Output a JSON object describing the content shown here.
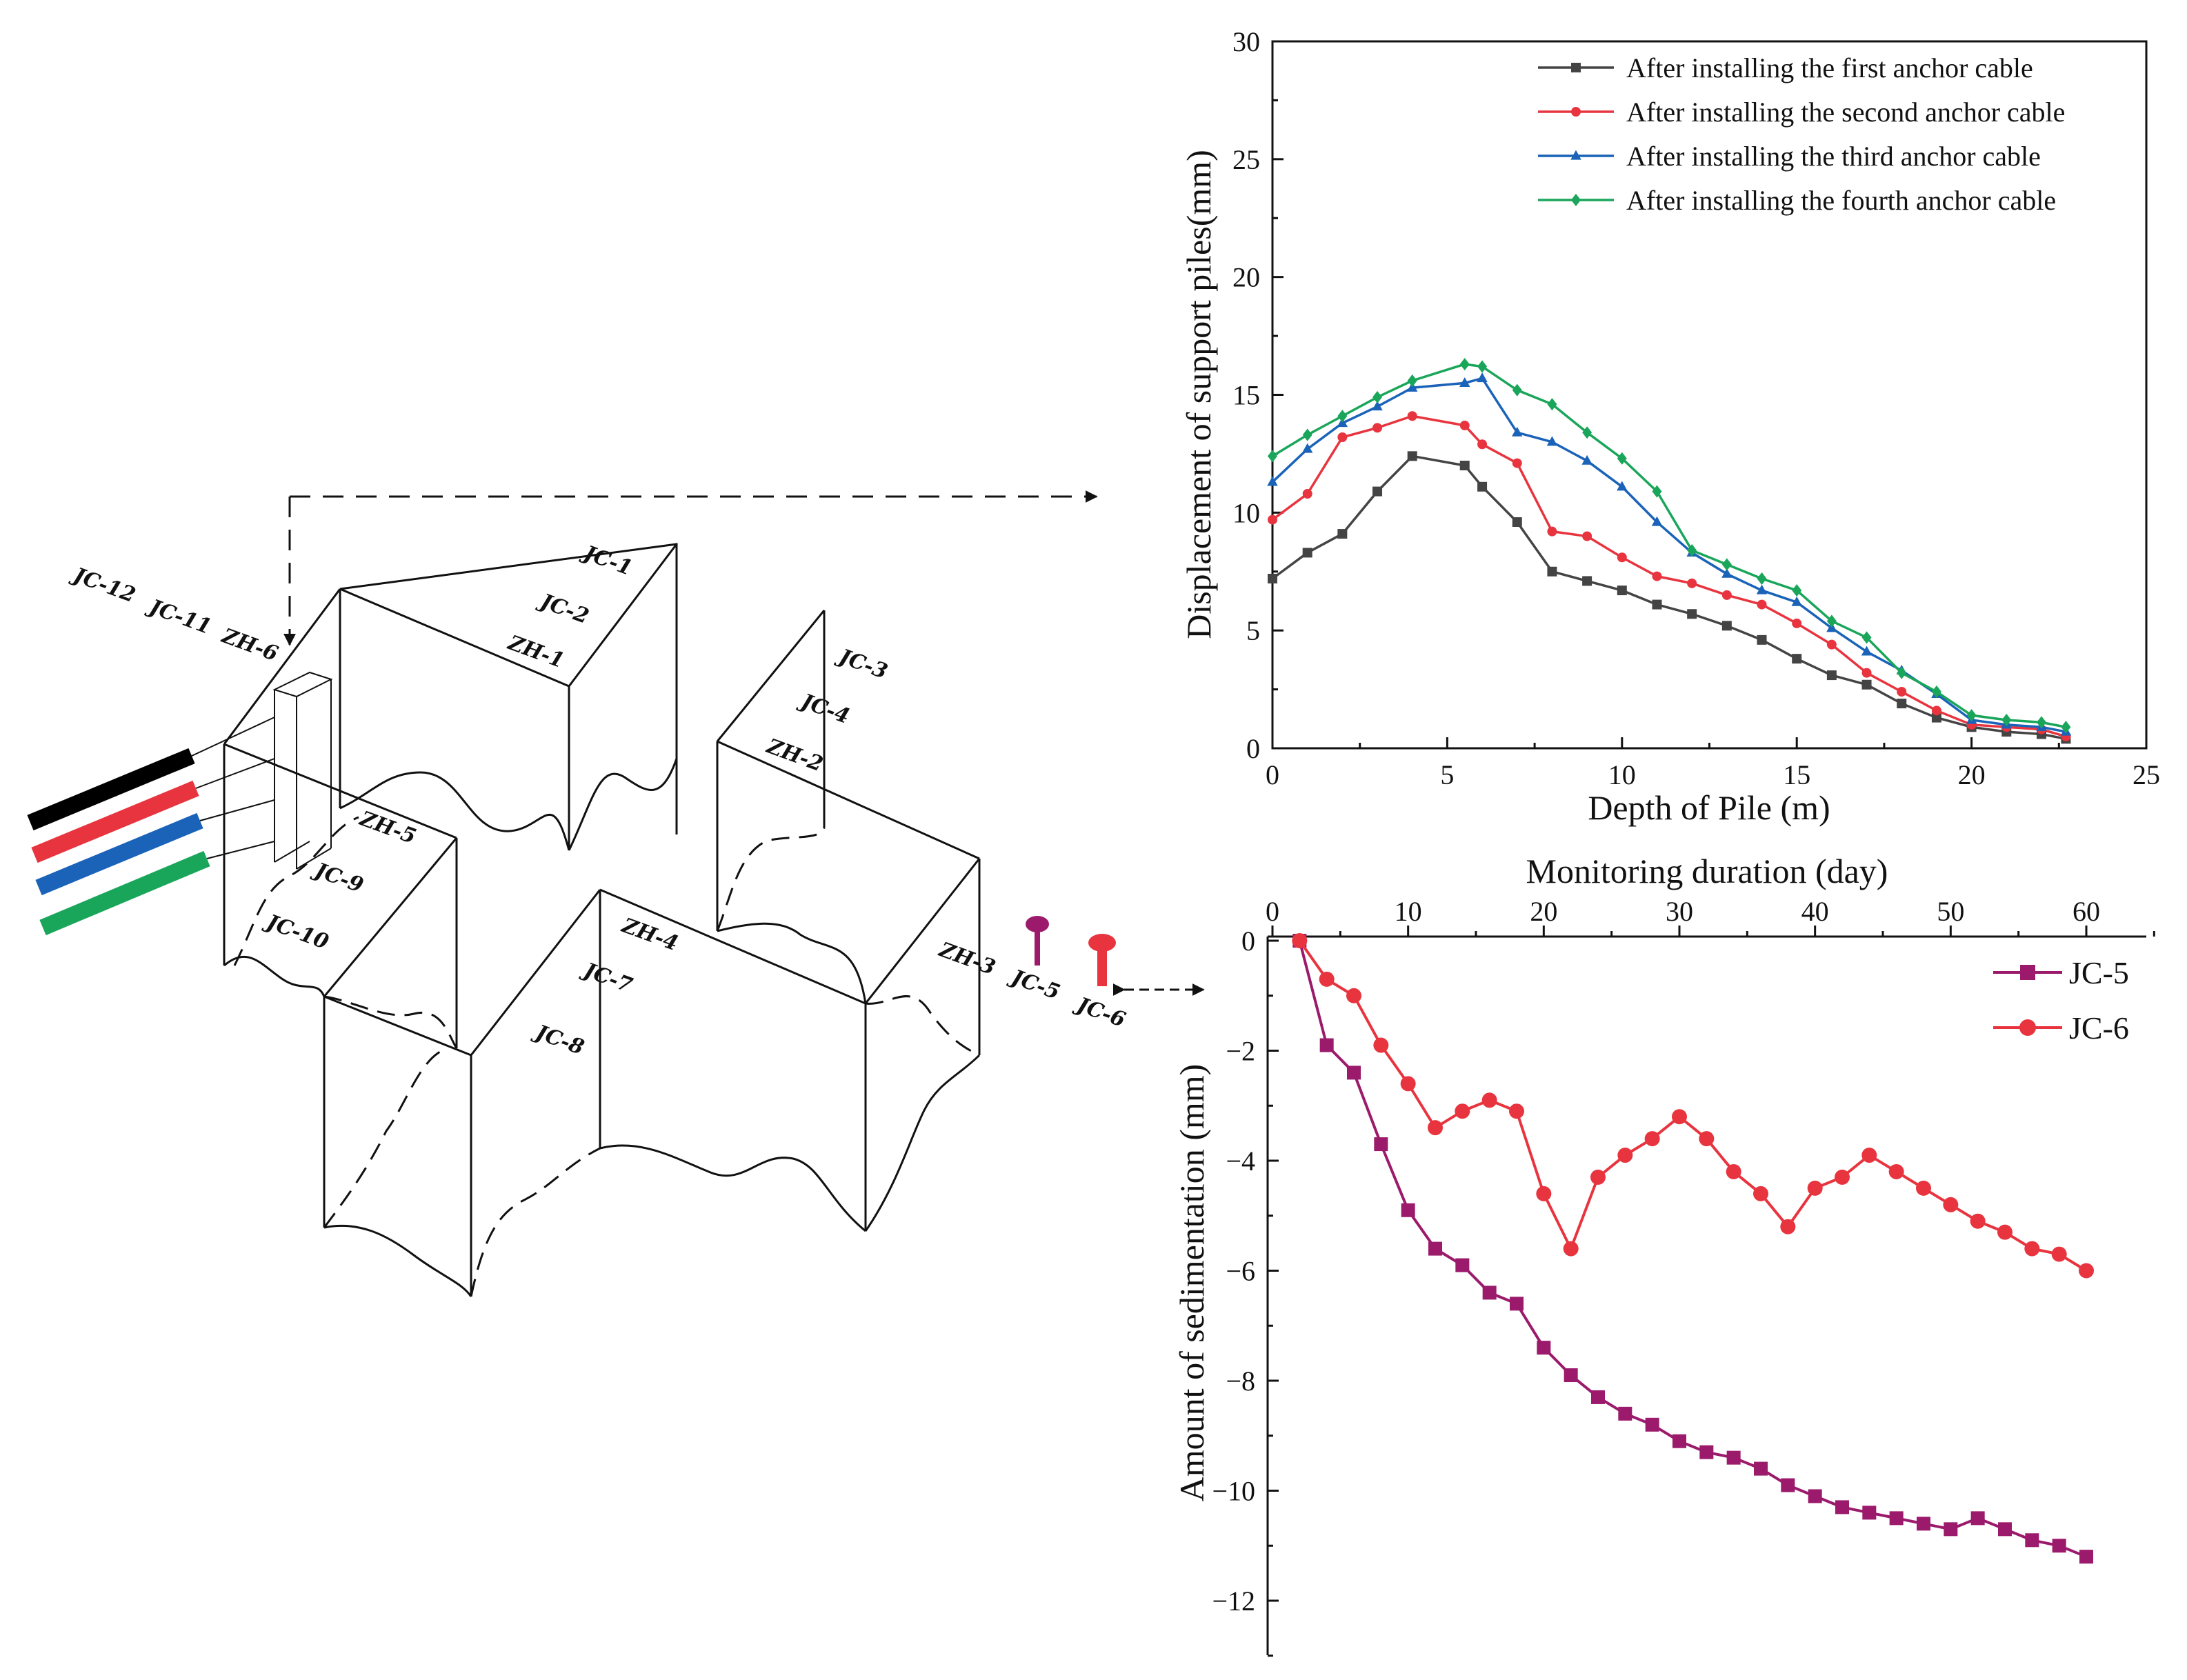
{
  "diagram": {
    "labels": {
      "jc1": "JC-1",
      "jc2": "JC-2",
      "zh1": "ZH-1",
      "jc3": "JC-3",
      "jc4": "JC-4",
      "zh2": "ZH-2",
      "jc12": "JC-12",
      "jc11": "JC-11",
      "zh6": "ZH-6",
      "zh5": "ZH-5",
      "jc9": "JC-9",
      "jc10": "JC-10",
      "zh4": "ZH-4",
      "jc7": "JC-7",
      "jc8": "JC-8",
      "zh3": "ZH-3",
      "jc5": "JC-5",
      "jc6": "JC-6"
    },
    "colors": {
      "bar1": "#000000",
      "bar2": "#e8343e",
      "bar3": "#1a63b9",
      "bar4": "#1aa65a",
      "jc5_marker": "#9b1a6b",
      "jc6_marker": "#e8343e"
    }
  },
  "chart_data": [
    {
      "type": "line",
      "xlabel": "Depth of Pile (m)",
      "ylabel": "Displacement of support piles(mm)",
      "xlim": [
        0,
        25
      ],
      "ylim": [
        0,
        30
      ],
      "xticks": [
        0,
        5,
        10,
        15,
        20,
        25
      ],
      "yticks": [
        0,
        5,
        10,
        15,
        20,
        25,
        30
      ],
      "legend_position": "top-right",
      "series": [
        {
          "name": "After installing the first anchor cable",
          "marker": "square",
          "color": "#444444",
          "x": [
            0,
            1,
            2,
            3,
            4,
            5.5,
            6,
            7,
            8,
            9,
            10,
            11,
            12,
            13,
            14,
            15,
            16,
            17,
            18,
            19,
            20,
            21,
            22,
            22.7
          ],
          "y": [
            7.2,
            8.3,
            9.1,
            10.9,
            12.4,
            12.0,
            11.1,
            9.6,
            7.5,
            7.1,
            6.7,
            6.1,
            5.7,
            5.2,
            4.6,
            3.8,
            3.1,
            2.7,
            1.9,
            1.3,
            0.9,
            0.7,
            0.6,
            0.4
          ]
        },
        {
          "name": "After installing the second anchor cable",
          "marker": "circle",
          "color": "#e8343e",
          "x": [
            0,
            1,
            2,
            3,
            4,
            5.5,
            6,
            7,
            8,
            9,
            10,
            11,
            12,
            13,
            14,
            15,
            16,
            17,
            18,
            19,
            20,
            21,
            22,
            22.7
          ],
          "y": [
            9.7,
            10.8,
            13.2,
            13.6,
            14.1,
            13.7,
            12.9,
            12.1,
            9.2,
            9.0,
            8.1,
            7.3,
            7.0,
            6.5,
            6.1,
            5.3,
            4.4,
            3.2,
            2.4,
            1.6,
            1.0,
            0.9,
            0.8,
            0.5
          ]
        },
        {
          "name": "After installing the third anchor cable",
          "marker": "triangle",
          "color": "#1a63b9",
          "x": [
            0,
            1,
            2,
            3,
            4,
            5.5,
            6,
            7,
            8,
            9,
            10,
            11,
            12,
            13,
            14,
            15,
            16,
            17,
            18,
            19,
            20,
            21,
            22,
            22.7
          ],
          "y": [
            11.3,
            12.7,
            13.8,
            14.5,
            15.3,
            15.5,
            15.7,
            13.4,
            13.0,
            12.2,
            11.1,
            9.6,
            8.3,
            7.4,
            6.7,
            6.2,
            5.1,
            4.1,
            3.3,
            2.3,
            1.2,
            1.0,
            0.9,
            0.7
          ]
        },
        {
          "name": "After installing the fourth anchor cable",
          "marker": "diamond",
          "color": "#1aa65a",
          "x": [
            0,
            1,
            2,
            3,
            4,
            5.5,
            6,
            7,
            8,
            9,
            10,
            11,
            12,
            13,
            14,
            15,
            16,
            17,
            18,
            19,
            20,
            21,
            22,
            22.7
          ],
          "y": [
            12.4,
            13.3,
            14.1,
            14.9,
            15.6,
            16.3,
            16.2,
            15.2,
            14.6,
            13.4,
            12.3,
            10.9,
            8.4,
            7.8,
            7.2,
            6.7,
            5.4,
            4.7,
            3.2,
            2.4,
            1.4,
            1.2,
            1.1,
            0.9
          ]
        }
      ]
    },
    {
      "type": "line",
      "xlabel": "Monitoring duration (day)",
      "ylabel": "Amount of sedimentation (mm)",
      "xlim": [
        0,
        65
      ],
      "ylim": [
        -13,
        0
      ],
      "xticks": [
        0,
        10,
        20,
        30,
        40,
        50,
        60
      ],
      "yticks": [
        0,
        -2,
        -4,
        -6,
        -8,
        -10,
        -12
      ],
      "legend_position": "top-right",
      "series": [
        {
          "name": "JC-5",
          "marker": "square",
          "color": "#9b1a6b",
          "x": [
            2,
            4,
            6,
            8,
            10,
            12,
            14,
            16,
            18,
            20,
            22,
            24,
            26,
            28,
            30,
            32,
            34,
            36,
            38,
            40,
            42,
            44,
            46,
            48,
            50,
            52,
            54,
            56,
            58,
            60
          ],
          "y": [
            0,
            -1.9,
            -2.4,
            -3.7,
            -4.9,
            -5.6,
            -5.9,
            -6.4,
            -6.6,
            -7.4,
            -7.9,
            -8.3,
            -8.6,
            -8.8,
            -9.1,
            -9.3,
            -9.4,
            -9.6,
            -9.9,
            -10.1,
            -10.3,
            -10.4,
            -10.5,
            -10.6,
            -10.7,
            -10.5,
            -10.7,
            -10.9,
            -11.0,
            -11.2
          ]
        },
        {
          "name": "JC-6",
          "marker": "circle",
          "color": "#e8343e",
          "x": [
            2,
            4,
            6,
            8,
            10,
            12,
            14,
            16,
            18,
            20,
            22,
            24,
            26,
            28,
            30,
            32,
            34,
            36,
            38,
            40,
            42,
            44,
            46,
            48,
            50,
            52,
            54,
            56,
            58,
            60
          ],
          "y": [
            0,
            -0.7,
            -1.0,
            -1.9,
            -2.6,
            -3.4,
            -3.1,
            -2.9,
            -3.1,
            -4.6,
            -5.6,
            -4.3,
            -3.9,
            -3.6,
            -3.2,
            -3.6,
            -4.2,
            -4.6,
            -5.2,
            -4.5,
            -4.3,
            -3.9,
            -4.2,
            -4.5,
            -4.8,
            -5.1,
            -5.3,
            -5.6,
            -5.7,
            -6.0
          ]
        }
      ]
    }
  ]
}
